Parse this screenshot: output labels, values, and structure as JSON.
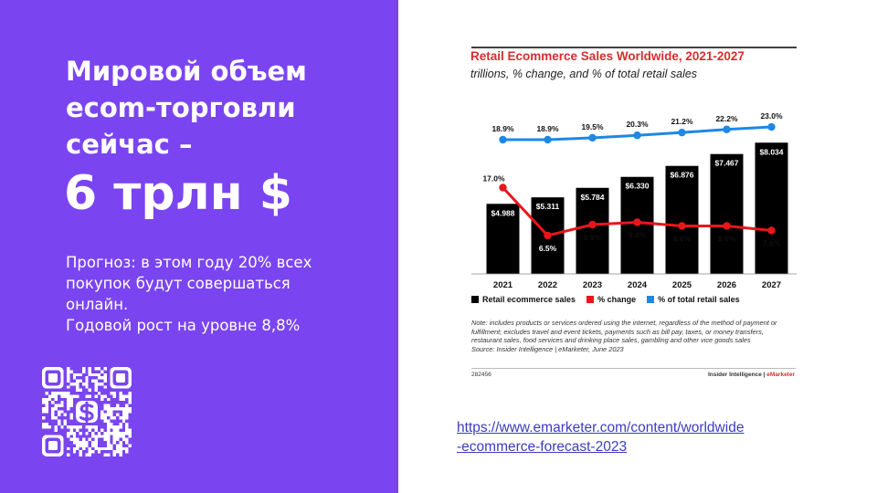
{
  "slide": {
    "title_lines": [
      "Мировой объем",
      "ecom-торговли",
      "сейчас –"
    ],
    "big_number": "6 трлн $",
    "subtext_lines": [
      "Прогноз: в этом году 20% всех",
      "покупок будут совершаться",
      "онлайн.",
      "Годовой рост на уровне 8,8%"
    ],
    "link_lines": [
      "https://www.emarketer.com/content/worldwide",
      "-ecommerce-forecast-2023"
    ],
    "colors": {
      "left_panel": "#7a45f0",
      "link": "#3c3cc0"
    },
    "qr_icon": "dollar-sign-icon"
  },
  "chart_data": {
    "type": "bar",
    "title": "Retail Ecommerce Sales Worldwide, 2021-2027",
    "subtitle": "trillions, % change, and % of total retail sales",
    "categories": [
      "2021",
      "2022",
      "2023",
      "2024",
      "2025",
      "2026",
      "2027"
    ],
    "series": [
      {
        "name": "Retail ecommerce sales",
        "type": "bar",
        "color": "#000000",
        "values": [
          4.988,
          5.311,
          5.784,
          6.33,
          6.876,
          7.467,
          8.034
        ],
        "labels": [
          "$4.988",
          "$5.311",
          "$5.784",
          "$6.330",
          "$6.876",
          "$7.467",
          "$8.034"
        ]
      },
      {
        "name": "% change",
        "type": "line",
        "color": "#e8161b",
        "values": [
          17.0,
          6.5,
          8.9,
          9.4,
          8.6,
          8.6,
          7.6
        ],
        "labels": [
          "17.0%",
          "6.5%",
          "8.9%",
          "9.4%",
          "8.6%",
          "8.6%",
          "7.6%"
        ]
      },
      {
        "name": "% of total retail sales",
        "type": "line",
        "color": "#1e88e5",
        "values": [
          18.9,
          18.9,
          19.5,
          20.3,
          21.2,
          22.2,
          23.0
        ],
        "labels": [
          "18.9%",
          "18.9%",
          "19.5%",
          "20.3%",
          "21.2%",
          "22.2%",
          "23.0%"
        ]
      }
    ],
    "notes": "Note: includes products or services ordered using the internet, regardless of the method of payment or fulfillment; excludes travel and event tickets, payments such as bill pay, taxes, or money transfers, restaurant sales, food services and drinking place sales, gambling and other vice goods sales",
    "source": "Source: Insider Intelligence | eMarketer, June 2023",
    "chart_id": "282456",
    "credit_main": "Insider Intelligence | ",
    "credit_brand": "eMarketer"
  }
}
